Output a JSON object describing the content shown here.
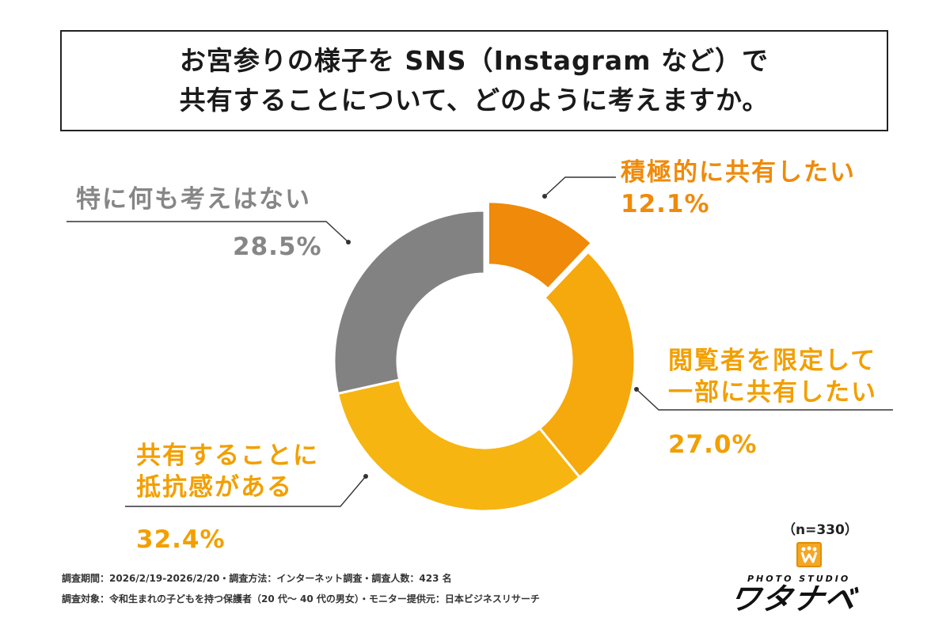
{
  "title": {
    "line1": "お宮参りの様子を SNS（Instagram など）で",
    "line2": "共有することについて、どのように考えますか。"
  },
  "sample_size": "（n=330）",
  "footer": {
    "line1": "調査期間：2026/2/19-2026/2/20・調査方法：インターネット調査・調査人数：423 名",
    "line2": "調査対象：令和生まれの子どもを持つ保護者（20 代〜 40 代の男女）・モニター提供元：日本ビジネスリサーチ"
  },
  "logo": {
    "sub": "PHOTO STUDIO",
    "main": "ワタナベ",
    "accent": "#f5a623"
  },
  "chart_data": {
    "type": "pie",
    "donut": true,
    "categories": [
      "積極的に共有したい",
      "閲覧者を限定して一部に共有したい",
      "共有することに抵抗感がある",
      "特に何も考えはない"
    ],
    "values": [
      12.1,
      27.0,
      32.4,
      28.5
    ],
    "colors": [
      "#ef8a0a",
      "#f6a90c",
      "#f6b511",
      "#838283"
    ],
    "labels": [
      {
        "lines": [
          "積極的に共有したい"
        ],
        "pct": "12.1%",
        "color": "#ef8a0a"
      },
      {
        "lines": [
          "閲覧者を限定して",
          "一部に共有したい"
        ],
        "pct": "27.0%",
        "color": "#f29f00"
      },
      {
        "lines": [
          "共有することに",
          "抵抗感がある"
        ],
        "pct": "32.4%",
        "color": "#f29f00"
      },
      {
        "lines": [
          "特に何も考えはない"
        ],
        "pct": "28.5%",
        "color": "#868686"
      }
    ]
  }
}
